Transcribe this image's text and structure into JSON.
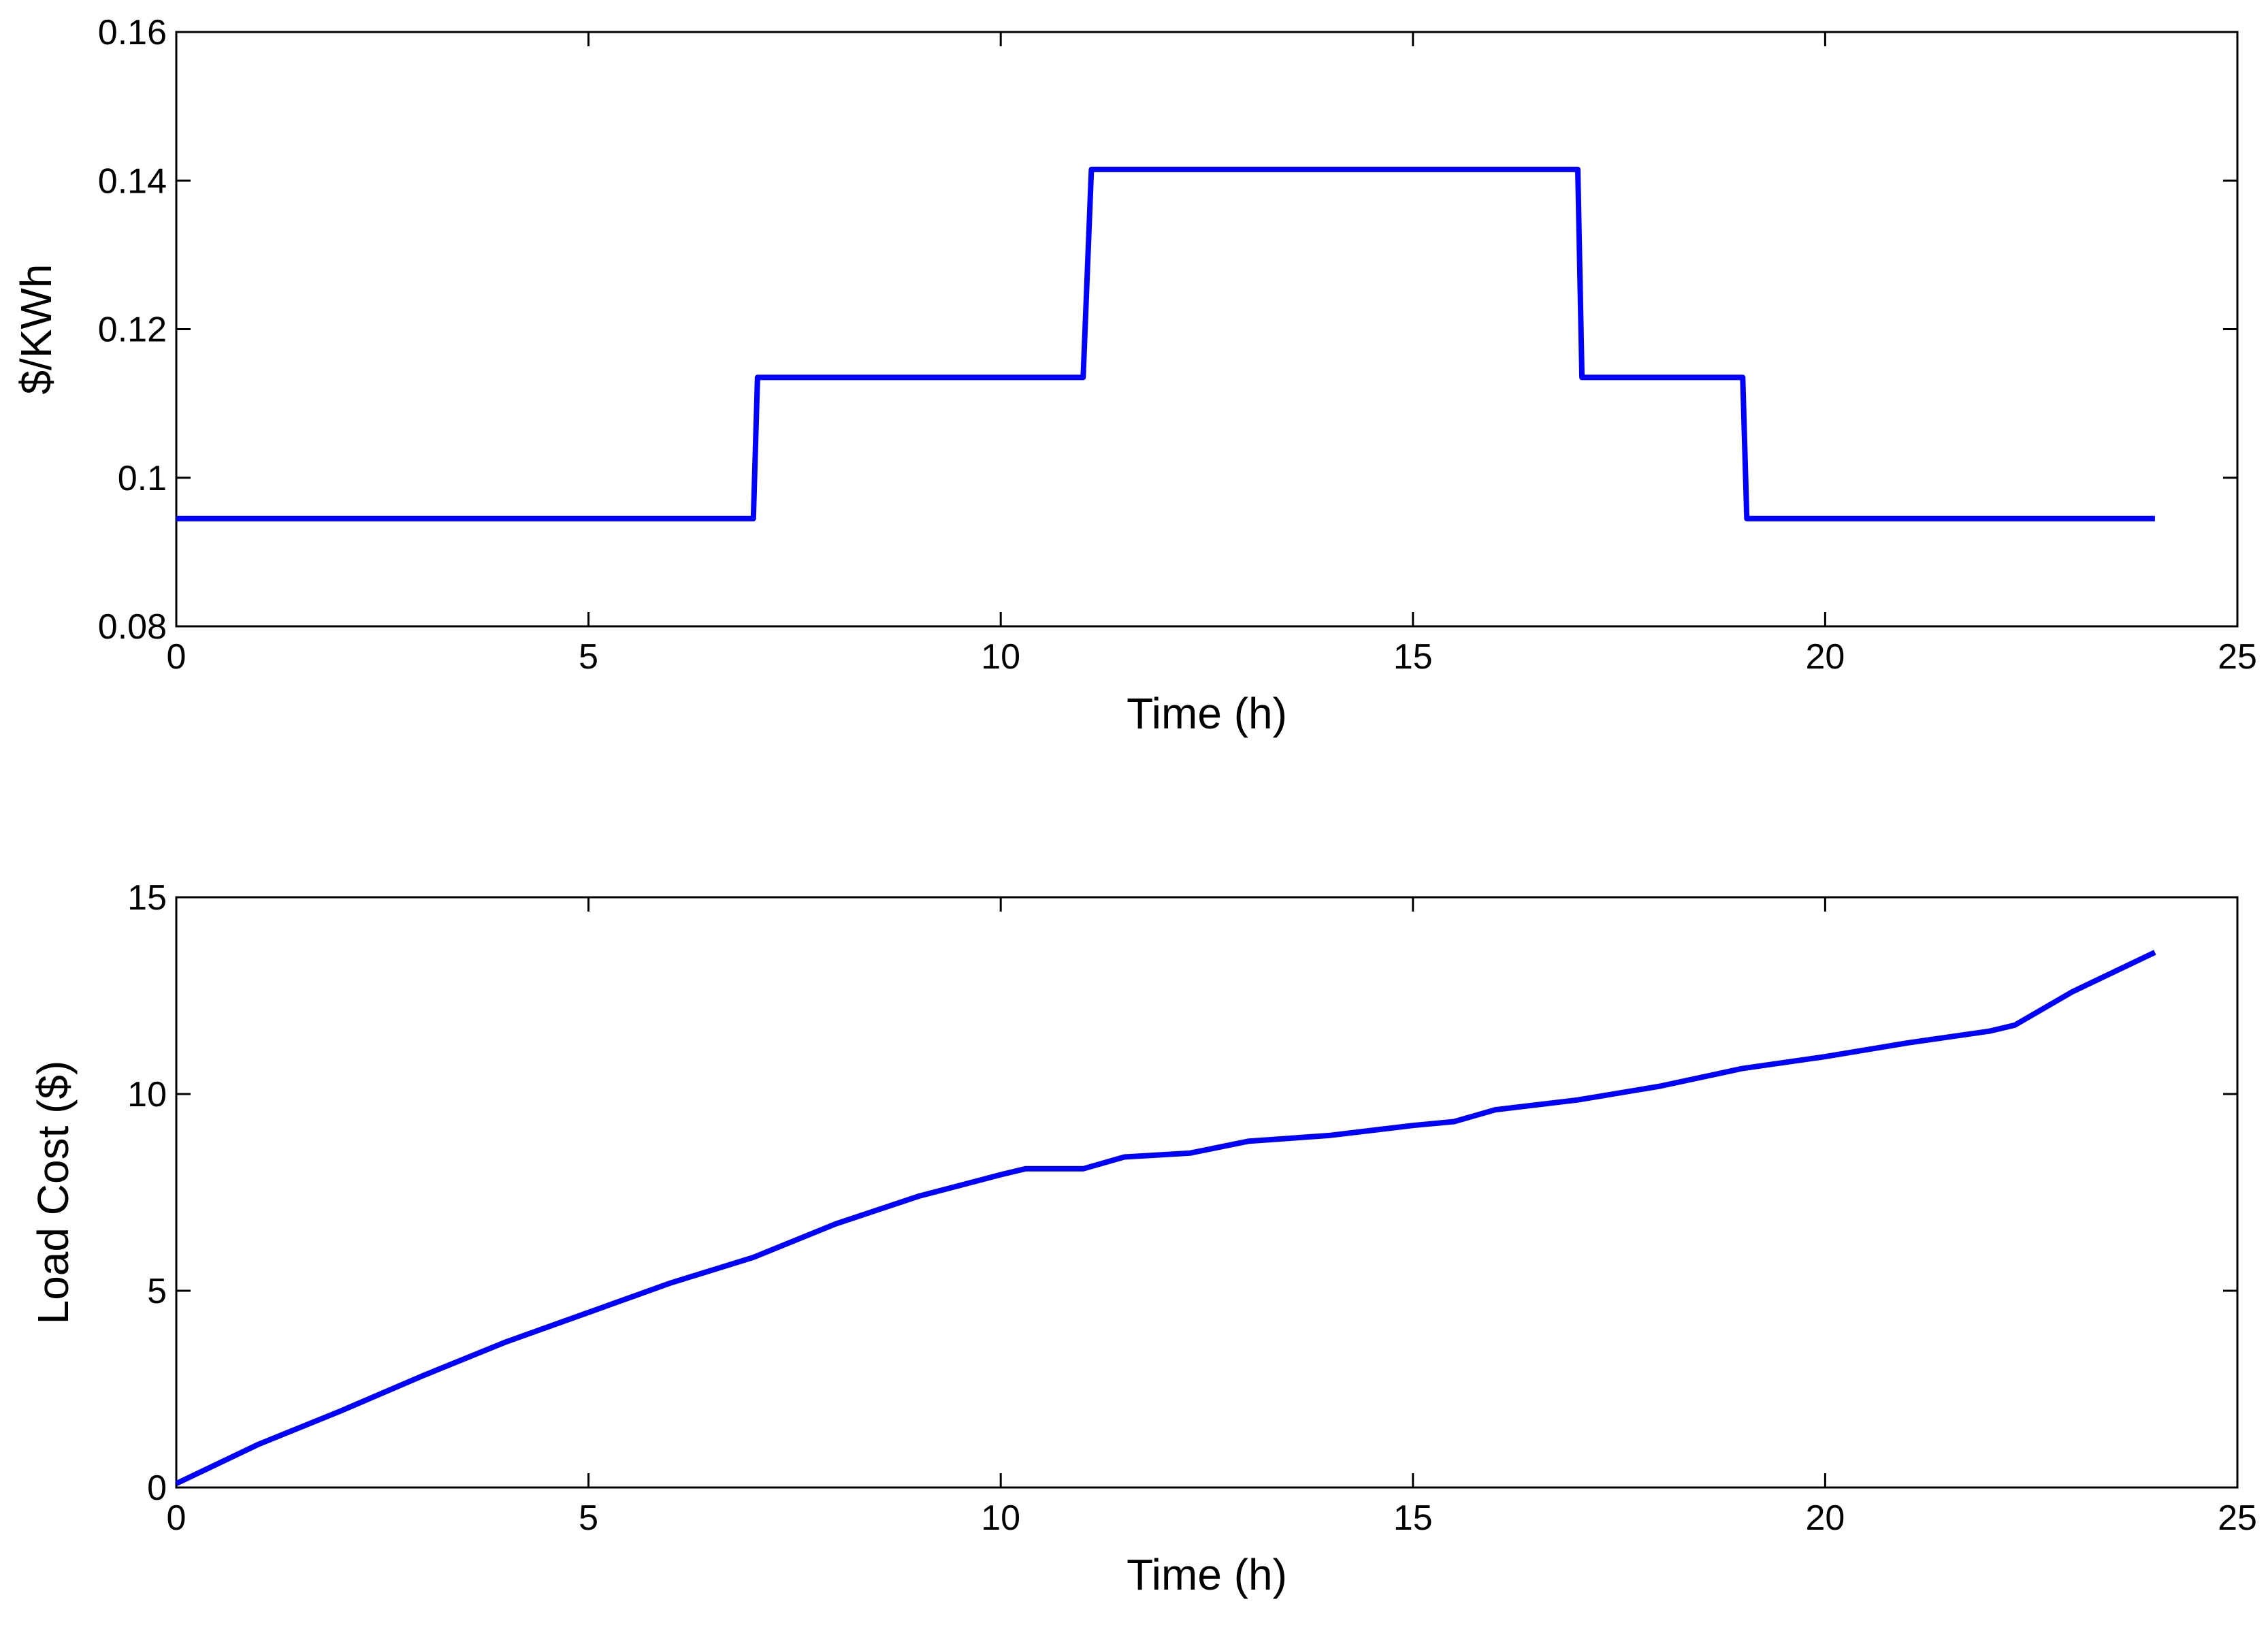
{
  "chart_data": [
    {
      "type": "line",
      "xlabel": "Time (h)",
      "ylabel": "$/KWh",
      "color": "#0000ff",
      "x": [
        0,
        7,
        7.05,
        11,
        11.1,
        17,
        17.05,
        19,
        19.05,
        24
      ],
      "values": [
        0.0945,
        0.0945,
        0.1135,
        0.1135,
        0.1415,
        0.1415,
        0.1135,
        0.1135,
        0.0945,
        0.0945
      ],
      "xlim": [
        0,
        25
      ],
      "xticks": [
        0,
        5,
        10,
        15,
        20,
        25
      ],
      "ylim": [
        0.08,
        0.16
      ],
      "yticks": [
        0.08,
        0.1,
        0.12,
        0.14,
        0.16
      ]
    },
    {
      "type": "line",
      "xlabel": "Time (h)",
      "ylabel": "Load Cost ($)",
      "color": "#0000ff",
      "x": [
        0,
        1,
        2,
        3,
        4,
        5,
        6,
        7,
        8,
        9,
        10,
        10.3,
        11,
        11.5,
        12.3,
        13,
        14,
        15,
        15.5,
        16,
        17,
        18,
        19,
        20,
        21,
        22,
        22.3,
        23,
        24
      ],
      "values": [
        0.1,
        1.1,
        1.95,
        2.85,
        3.7,
        4.45,
        5.2,
        5.85,
        6.7,
        7.4,
        7.95,
        8.1,
        8.1,
        8.4,
        8.5,
        8.8,
        8.95,
        9.2,
        9.3,
        9.6,
        9.85,
        10.2,
        10.65,
        10.95,
        11.3,
        11.6,
        11.75,
        12.6,
        13.6
      ],
      "xlim": [
        0,
        25
      ],
      "xticks": [
        0,
        5,
        10,
        15,
        20,
        25
      ],
      "ylim": [
        0,
        15
      ],
      "yticks": [
        0,
        5,
        10,
        15
      ]
    }
  ]
}
